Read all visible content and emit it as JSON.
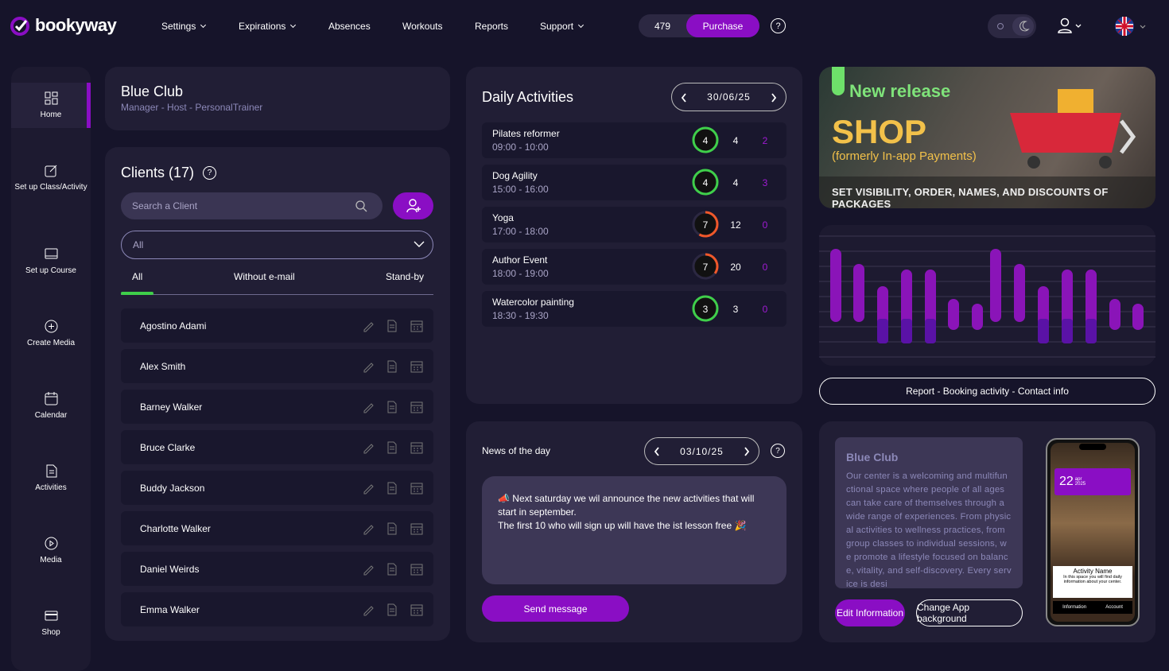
{
  "header": {
    "logo": "bookyway",
    "nav": [
      "Settings",
      "Expirations",
      "Absences",
      "Workouts",
      "Reports",
      "Support"
    ],
    "credits": 479,
    "purchase": "Purchase",
    "help": "?"
  },
  "sidebar": [
    "Home",
    "Set up Class/Activity",
    "Set up Course",
    "Create Media",
    "Calendar",
    "Activities",
    "Media",
    "Shop"
  ],
  "club": {
    "name": "Blue Club",
    "roles": "Manager - Host - PersonalTrainer"
  },
  "clients": {
    "title": "Clients (17)",
    "help": "?",
    "search": "Search a Client",
    "filter": "All",
    "tabs": [
      "All",
      "Without e-mail",
      "Stand-by"
    ],
    "list": [
      "Agostino Adami",
      "Alex Smith",
      "Barney Walker",
      "Bruce Clarke",
      "Buddy Jackson",
      "Charlotte Walker",
      "Daniel Weirds",
      "Emma Walker"
    ]
  },
  "daily": {
    "title": "Daily Activities",
    "date": "30/06/25",
    "activities": [
      {
        "name": "Pilates reformer",
        "time": "09:00 - 10:00",
        "booked": 4,
        "capacity": 4,
        "waiting": 2
      },
      {
        "name": "Dog Agility",
        "time": "15:00 - 16:00",
        "booked": 4,
        "capacity": 4,
        "waiting": 3
      },
      {
        "name": "Yoga",
        "time": "17:00 - 18:00",
        "booked": 7,
        "capacity": 12,
        "waiting": 0
      },
      {
        "name": "Author Event",
        "time": "18:00 - 19:00",
        "booked": 7,
        "capacity": 20,
        "waiting": 0
      },
      {
        "name": "Watercolor painting",
        "time": "18:30 - 19:30",
        "booked": 3,
        "capacity": 3,
        "waiting": 0
      }
    ]
  },
  "news": {
    "title": "News of the day",
    "date": "03/10/25",
    "help": "?",
    "message": [
      "📣 Next saturday we wil announce the new activities that will start in september.",
      "The first 10 who will sign up will have the ist lesson free 🎉"
    ],
    "send": "Send message"
  },
  "banner": {
    "tag": "New release",
    "title": "SHOP",
    "subtitle": "(formerly In-app Payments)",
    "caption": "SET VISIBILITY, ORDER, NAMES, AND DISCOUNTS OF PACKAGES"
  },
  "report_button": "Report - Booking activity - Contact info",
  "about": {
    "name": "Blue Club",
    "description": "Our center is a welcoming and multifunctional space where people of all ages can take care of themselves through a wide range of experiences. From physical activities to wellness practices, from group classes to individual sessions, we promote a lifestyle focused on balance, vitality, and self-discovery. Every service is desi",
    "edit": "Edit Information",
    "change": "Change App background"
  },
  "phone": {
    "day": "22",
    "month": "apr",
    "year": "2025",
    "activity": "Activity Name",
    "info": "In this space you will find daily information about your center.",
    "tabs": [
      "Information",
      "Account"
    ]
  }
}
